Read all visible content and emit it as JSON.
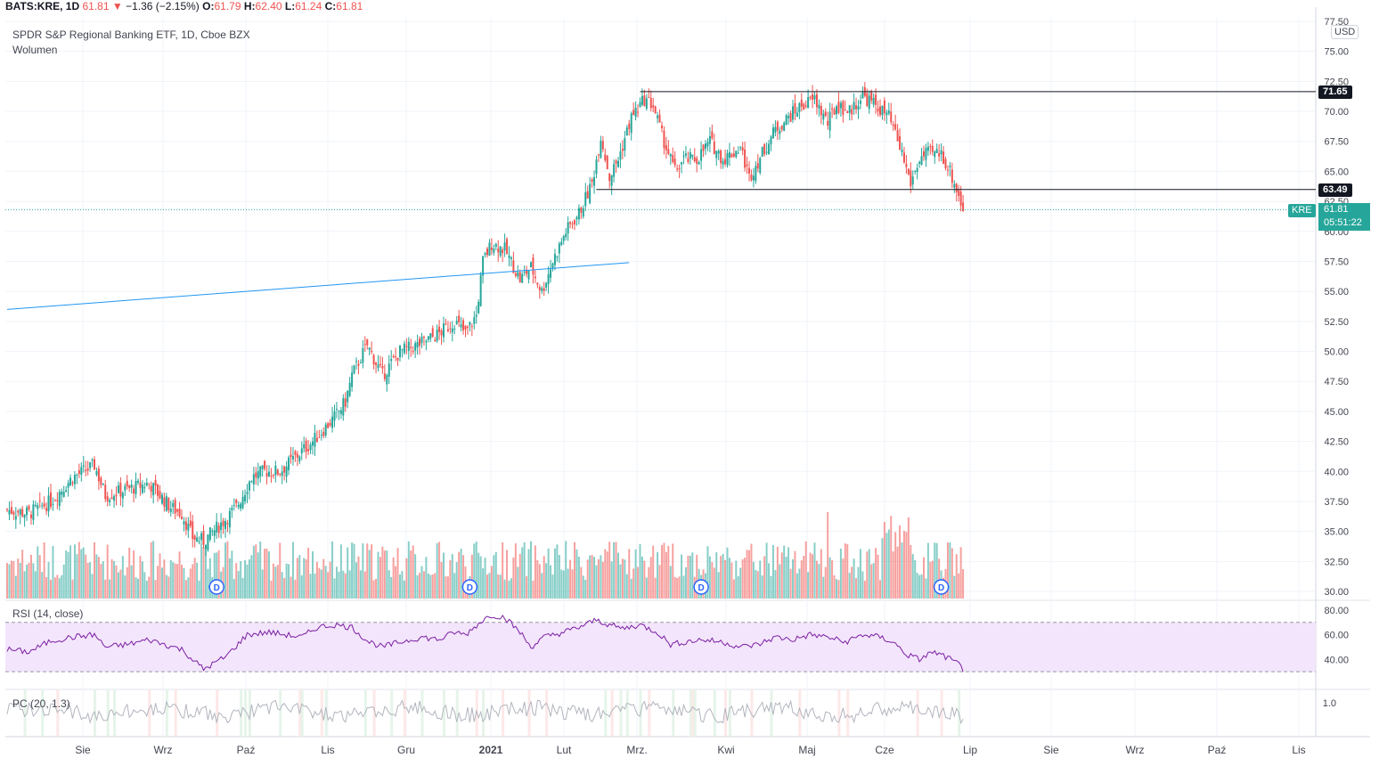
{
  "header": {
    "symbol": "BATS:KRE, 1D",
    "last": "61.81",
    "arrow": "▼",
    "change": "−1.36 (−2.15%)",
    "o_label": "O:",
    "o_value": "61.79",
    "h_label": "H:",
    "h_value": "62.40",
    "l_label": "L:",
    "l_value": "61.24",
    "c_label": "C:",
    "c_value": "61.81"
  },
  "legend": {
    "title": "SPDR S&P Regional Banking ETF, 1D, Cboe BZX",
    "volume_label": "Wolumen",
    "rsi_label": "RSI (14, close)",
    "pc_label": "PC (20, 1.3)",
    "currency": "USD"
  },
  "price_scale": {
    "ticks": [
      "77.50",
      "75.00",
      "72.50",
      "70.00",
      "67.50",
      "65.00",
      "62.50",
      "60.00",
      "57.50",
      "55.00",
      "52.50",
      "50.00",
      "47.50",
      "45.00",
      "42.50",
      "40.00",
      "37.50",
      "35.00",
      "32.50",
      "30.00"
    ],
    "resistance_tag": "71.65",
    "support_tag": "63.49",
    "last_tag": "61.81",
    "countdown": "05:51:22",
    "symbol_tag": "KRE"
  },
  "rsi_scale": {
    "ticks": [
      "80.00",
      "60.00",
      "40.00"
    ]
  },
  "pc_scale": {
    "ticks": [
      "1.0"
    ]
  },
  "time_axis": [
    "Sie",
    "Wrz",
    "Paź",
    "Lis",
    "Gru",
    "2021",
    "Lut",
    "Mrz.",
    "Kwi",
    "Maj",
    "Cze",
    "Lip",
    "Sie",
    "Wrz",
    "Paź",
    "Lis"
  ],
  "dividend_marker": "D",
  "colors": {
    "up": "#26a69a",
    "down": "#ef5350",
    "rsi": "#7b1fa2",
    "rsi_band": "#f3e5fc",
    "trendline": "#2196f3"
  },
  "chart_data": {
    "type": "candlestick",
    "title": "SPDR S&P Regional Banking ETF, 1D, Cboe BZX",
    "y_range": [
      30,
      77.5
    ],
    "x_labels": [
      "Sie",
      "Wrz",
      "Paź",
      "Lis",
      "Gru",
      "2021",
      "Lut",
      "Mrz.",
      "Kwi",
      "Maj",
      "Cze",
      "Lip"
    ],
    "close_path": [
      [
        0,
        36.8
      ],
      [
        10,
        36.5
      ],
      [
        20,
        37.5
      ],
      [
        30,
        39.5
      ],
      [
        40,
        40.5
      ],
      [
        45,
        38.0
      ],
      [
        55,
        38.5
      ],
      [
        65,
        39.0
      ],
      [
        75,
        37.0
      ],
      [
        80,
        36.5
      ],
      [
        85,
        34.5
      ],
      [
        90,
        34.2
      ],
      [
        100,
        36.0
      ],
      [
        105,
        37.0
      ],
      [
        112,
        39.5
      ],
      [
        118,
        40.0
      ],
      [
        125,
        40.0
      ],
      [
        140,
        42.5
      ],
      [
        150,
        44.5
      ],
      [
        155,
        45.8
      ],
      [
        158,
        48.0
      ],
      [
        162,
        49.5
      ],
      [
        165,
        50.5
      ],
      [
        172,
        48.0
      ],
      [
        180,
        50.0
      ],
      [
        188,
        50.5
      ],
      [
        198,
        51.5
      ],
      [
        205,
        52.5
      ],
      [
        210,
        51.5
      ],
      [
        215,
        53.0
      ],
      [
        218,
        57.5
      ],
      [
        222,
        59.0
      ],
      [
        228,
        58.5
      ],
      [
        235,
        56.0
      ],
      [
        240,
        57.0
      ],
      [
        245,
        55.0
      ],
      [
        250,
        57.5
      ],
      [
        256,
        60.0
      ],
      [
        262,
        61.5
      ],
      [
        268,
        64.0
      ],
      [
        272,
        68.0
      ],
      [
        276,
        64.5
      ],
      [
        280,
        66.0
      ],
      [
        286,
        69.5
      ],
      [
        292,
        71.0
      ],
      [
        296,
        70.5
      ],
      [
        300,
        68.0
      ],
      [
        306,
        65.0
      ],
      [
        310,
        66.0
      ],
      [
        316,
        66.0
      ],
      [
        322,
        67.5
      ],
      [
        328,
        66.0
      ],
      [
        336,
        67.0
      ],
      [
        340,
        64.5
      ],
      [
        346,
        66.5
      ],
      [
        352,
        68.5
      ],
      [
        358,
        69.5
      ],
      [
        364,
        70.5
      ],
      [
        370,
        71.0
      ],
      [
        376,
        69.0
      ],
      [
        380,
        70.5
      ],
      [
        386,
        70.0
      ],
      [
        392,
        71.3
      ],
      [
        398,
        70.5
      ],
      [
        404,
        69.5
      ],
      [
        410,
        66.5
      ],
      [
        414,
        64.0
      ],
      [
        418,
        66.0
      ],
      [
        422,
        66.5
      ],
      [
        428,
        66.5
      ],
      [
        432,
        65.0
      ],
      [
        436,
        63.0
      ],
      [
        438,
        61.8
      ]
    ],
    "trend_lines": [
      {
        "name": "resistance",
        "y": 71.65,
        "x_start": 290,
        "x_end": 580
      },
      {
        "name": "support",
        "y": 63.49,
        "x_start": 270,
        "x_end": 580
      },
      {
        "name": "rising trendline",
        "y_start": 53.5,
        "y_end": 57.4,
        "x_start": 0,
        "x_end": 285
      }
    ],
    "volume_range": [
      0,
      110
    ],
    "volume_note": "bars 10–50 units typical; peak near Cze/Lip",
    "rsi": {
      "range": [
        20,
        85
      ],
      "bands": [
        70,
        30
      ],
      "path": [
        [
          0,
          48
        ],
        [
          10,
          46
        ],
        [
          20,
          55
        ],
        [
          30,
          58
        ],
        [
          40,
          60
        ],
        [
          45,
          50
        ],
        [
          55,
          52
        ],
        [
          65,
          56
        ],
        [
          80,
          48
        ],
        [
          90,
          32
        ],
        [
          100,
          42
        ],
        [
          110,
          60
        ],
        [
          120,
          62
        ],
        [
          135,
          58
        ],
        [
          142,
          66
        ],
        [
          150,
          68
        ],
        [
          158,
          66
        ],
        [
          165,
          55
        ],
        [
          172,
          50
        ],
        [
          180,
          54
        ],
        [
          190,
          58
        ],
        [
          198,
          56
        ],
        [
          205,
          62
        ],
        [
          210,
          60
        ],
        [
          218,
          72
        ],
        [
          222,
          76
        ],
        [
          228,
          74
        ],
        [
          235,
          62
        ],
        [
          240,
          50
        ],
        [
          246,
          58
        ],
        [
          255,
          62
        ],
        [
          262,
          66
        ],
        [
          270,
          72
        ],
        [
          276,
          68
        ],
        [
          282,
          65
        ],
        [
          290,
          68
        ],
        [
          298,
          62
        ],
        [
          304,
          52
        ],
        [
          310,
          54
        ],
        [
          318,
          56
        ],
        [
          328,
          54
        ],
        [
          336,
          50
        ],
        [
          344,
          52
        ],
        [
          352,
          58
        ],
        [
          360,
          56
        ],
        [
          368,
          60
        ],
        [
          376,
          58
        ],
        [
          384,
          54
        ],
        [
          392,
          60
        ],
        [
          400,
          58
        ],
        [
          406,
          54
        ],
        [
          412,
          44
        ],
        [
          418,
          40
        ],
        [
          424,
          46
        ],
        [
          430,
          42
        ],
        [
          436,
          36
        ],
        [
          438,
          32
        ]
      ]
    },
    "pc_ticks": [
      "1.0"
    ]
  }
}
